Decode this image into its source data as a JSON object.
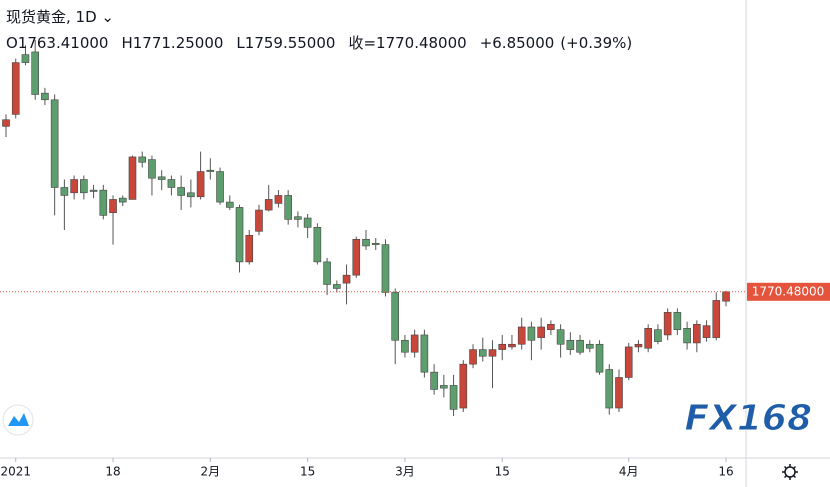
{
  "chart_data": {
    "type": "candlestick",
    "symbol": "现货黄金, 1D",
    "quote": [
      "O1763.41000",
      "H1771.25000",
      "L1759.55000",
      "收=1770.48000",
      "+6.85000",
      "(+0.39%)"
    ],
    "last_price_label": "1770.48000",
    "watermark": "FX168",
    "categories": [
      null,
      "2021",
      null,
      null,
      null,
      null,
      null,
      null,
      null,
      null,
      null,
      "18",
      null,
      null,
      null,
      null,
      null,
      null,
      null,
      null,
      null,
      "2月",
      null,
      null,
      null,
      null,
      null,
      null,
      null,
      null,
      null,
      "15",
      null,
      null,
      null,
      null,
      null,
      null,
      null,
      null,
      null,
      "3月",
      null,
      null,
      null,
      null,
      null,
      null,
      null,
      null,
      null,
      "15",
      null,
      null,
      null,
      null,
      null,
      null,
      null,
      null,
      null,
      null,
      null,
      null,
      "4月",
      null,
      null,
      null,
      null,
      null,
      null,
      null,
      null,
      null,
      "16"
    ],
    "series": [
      {
        "up_color": "#c8473a",
        "down_color": "#5e9e6e",
        "open": [
          1895,
          1904,
          1949,
          1951,
          1920,
          1915,
          1849,
          1845,
          1855,
          1847,
          1847,
          1830,
          1841,
          1840,
          1872,
          1870,
          1857,
          1855,
          1849,
          1845,
          1842,
          1862,
          1861,
          1838,
          1834,
          1793,
          1816,
          1832,
          1837,
          1843,
          1827,
          1826,
          1819,
          1793,
          1776,
          1777,
          1783,
          1810,
          1807,
          1806,
          1770,
          1734,
          1725,
          1738,
          1710,
          1700,
          1700,
          1683,
          1716,
          1727,
          1722,
          1727,
          1729,
          1731,
          1744,
          1736,
          1742,
          1742,
          1734,
          1734,
          1731,
          1731,
          1712,
          1683,
          1706,
          1729,
          1728,
          1742,
          1738,
          1755,
          1743,
          1732,
          1736,
          1736,
          1763.41
        ],
        "high": [
          1904,
          1946,
          1956,
          1960,
          1924,
          1919,
          1855,
          1858,
          1858,
          1851,
          1851,
          1843,
          1843,
          1873,
          1876,
          1873,
          1862,
          1858,
          1858,
          1855,
          1876,
          1871,
          1864,
          1843,
          1836,
          1817,
          1836,
          1851,
          1847,
          1847,
          1831,
          1829,
          1822,
          1796,
          1779,
          1791,
          1812,
          1817,
          1811,
          1810,
          1773,
          1738,
          1742,
          1742,
          1716,
          1708,
          1708,
          1719,
          1731,
          1736,
          1734,
          1738,
          1738,
          1751,
          1748,
          1751,
          1749,
          1746,
          1740,
          1738,
          1734,
          1734,
          1716,
          1712,
          1732,
          1734,
          1746,
          1746,
          1758,
          1758,
          1748,
          1749,
          1749,
          1770,
          1771.25
        ],
        "low": [
          1887,
          1901,
          1941,
          1915,
          1911,
          1828,
          1817,
          1840,
          1840,
          1841,
          1825,
          1806,
          1835,
          1840,
          1864,
          1843,
          1847,
          1843,
          1832,
          1834,
          1840,
          1855,
          1836,
          1832,
          1785,
          1791,
          1813,
          1831,
          1834,
          1821,
          1819,
          1811,
          1791,
          1768,
          1770,
          1761,
          1781,
          1802,
          1802,
          1767,
          1716,
          1721,
          1721,
          1706,
          1693,
          1691,
          1677,
          1680,
          1713,
          1718,
          1698,
          1719,
          1727,
          1727,
          1719,
          1727,
          1738,
          1721,
          1723,
          1723,
          1725,
          1708,
          1678,
          1680,
          1704,
          1725,
          1725,
          1731,
          1734,
          1738,
          1727,
          1725,
          1733,
          1734,
          1759.55
        ],
        "close": [
          1900,
          1943,
          1943,
          1919,
          1915,
          1849,
          1843,
          1855,
          1845,
          1846,
          1828,
          1840,
          1838,
          1872,
          1868,
          1856,
          1855,
          1849,
          1843,
          1842,
          1861,
          1861,
          1838,
          1834,
          1793,
          1813,
          1832,
          1840,
          1843,
          1825,
          1825,
          1819,
          1793,
          1776,
          1773,
          1783,
          1810,
          1805,
          1806,
          1770,
          1734,
          1725,
          1738,
          1710,
          1697,
          1698,
          1682,
          1716,
          1727,
          1722,
          1727,
          1731,
          1731,
          1744,
          1734,
          1744,
          1746,
          1731,
          1727,
          1725,
          1728,
          1710,
          1683,
          1706,
          1729,
          1731,
          1743,
          1733,
          1755,
          1742,
          1732,
          1746,
          1745,
          1764,
          1770.48
        ]
      }
    ]
  }
}
